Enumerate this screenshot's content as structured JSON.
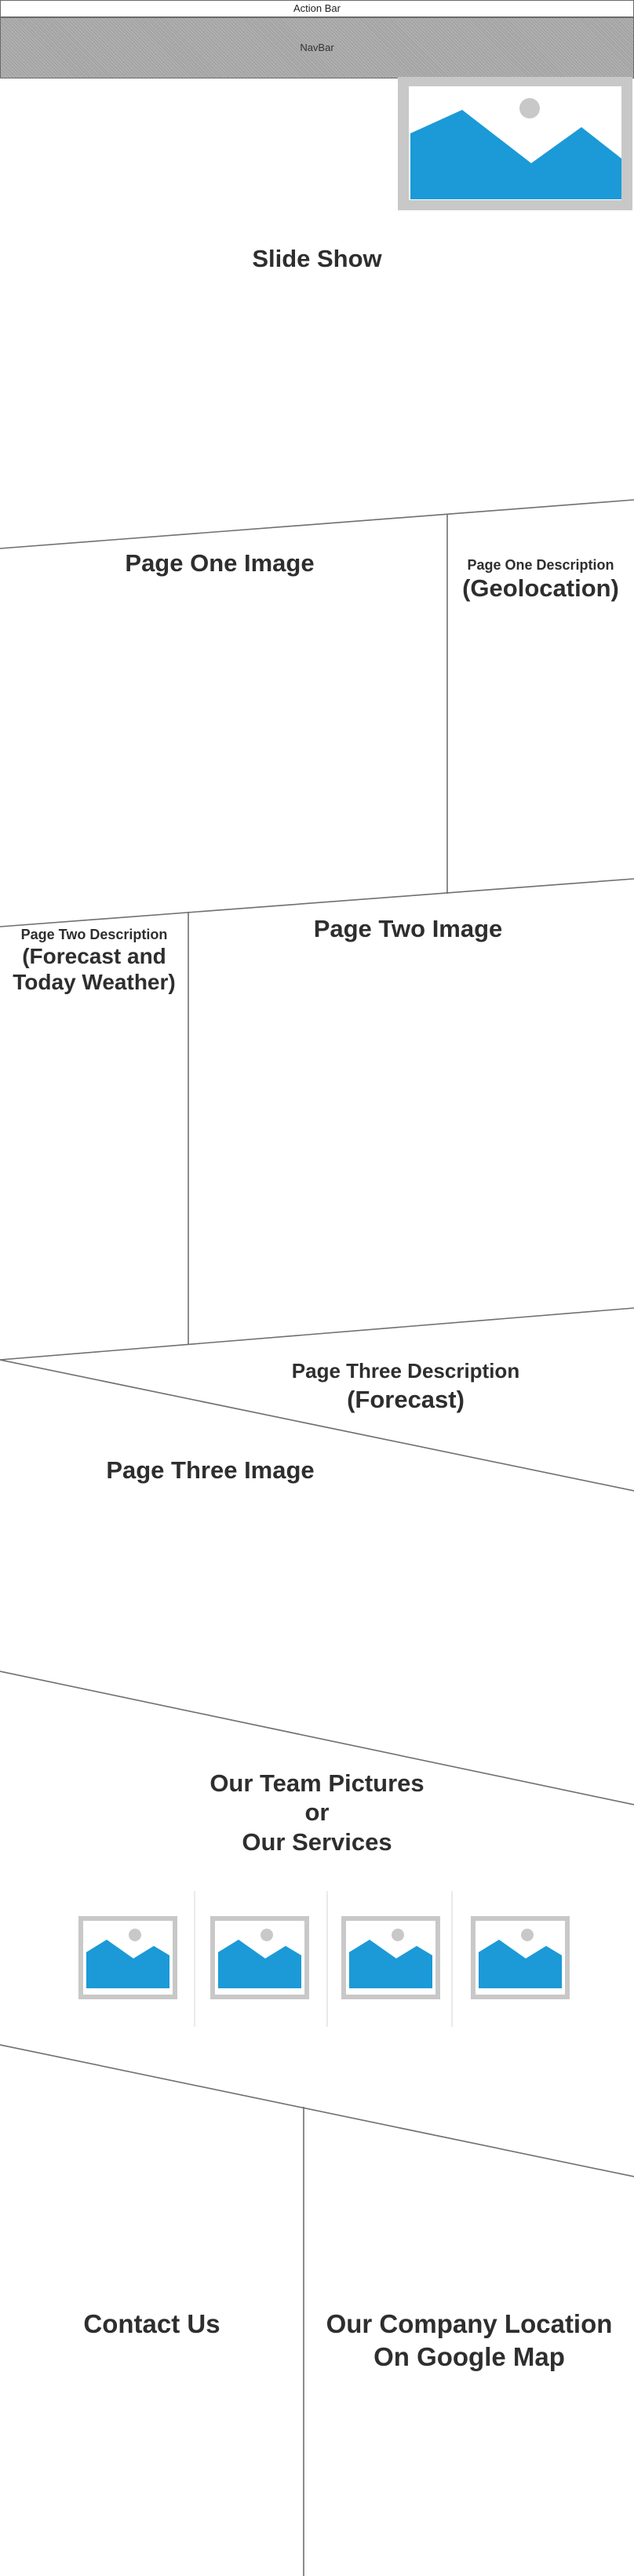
{
  "action_bar": {
    "label": "Action Bar"
  },
  "navbar": {
    "label": "NavBar"
  },
  "slideshow": {
    "title": "Slide Show"
  },
  "page_one": {
    "image_title": "Page One Image",
    "desc_small": "Page One Description",
    "desc_big": "(Geolocation)"
  },
  "page_two": {
    "desc_small": "Page Two Description",
    "desc_big_line1": "(Forecast and",
    "desc_big_line2": "Today Weather)",
    "image_title": "Page Two Image"
  },
  "page_three": {
    "desc_line1": "Page Three Description",
    "desc_line2": "(Forecast)",
    "image_title": "Page Three Image"
  },
  "team": {
    "line1": "Our Team Pictures",
    "line2": "or",
    "line3": "Our Services"
  },
  "contact": {
    "title": "Contact Us",
    "map_line1": "Our Company Location",
    "map_line2": "On Google Map"
  },
  "colors": {
    "placeholder_blue": "#1b9ad7",
    "placeholder_frame": "#c8c8c8",
    "placeholder_sun": "#c8c8c8",
    "line": "#6f6f6f"
  }
}
